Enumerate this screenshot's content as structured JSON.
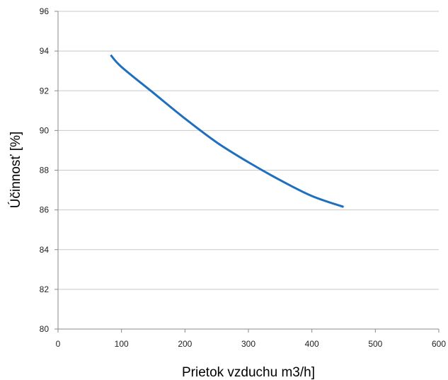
{
  "chart_data": {
    "type": "line",
    "xlabel": "Prietok vzduchu m3/h]",
    "ylabel": "Účinnosť [%]",
    "xlim": [
      0,
      600
    ],
    "ylim": [
      80,
      96
    ],
    "x_ticks": [
      "0",
      "100",
      "200",
      "300",
      "400",
      "500",
      "600"
    ],
    "y_ticks": [
      "80",
      "82",
      "84",
      "86",
      "88",
      "90",
      "92",
      "94",
      "96"
    ],
    "grid": "horizontal",
    "series": [
      {
        "color": "#1f6fbf",
        "x": [
          83,
          100,
          150,
          200,
          250,
          300,
          350,
          400,
          450
        ],
        "y": [
          93.8,
          93.2,
          91.9,
          90.6,
          89.4,
          88.4,
          87.5,
          86.7,
          86.15
        ]
      }
    ]
  }
}
